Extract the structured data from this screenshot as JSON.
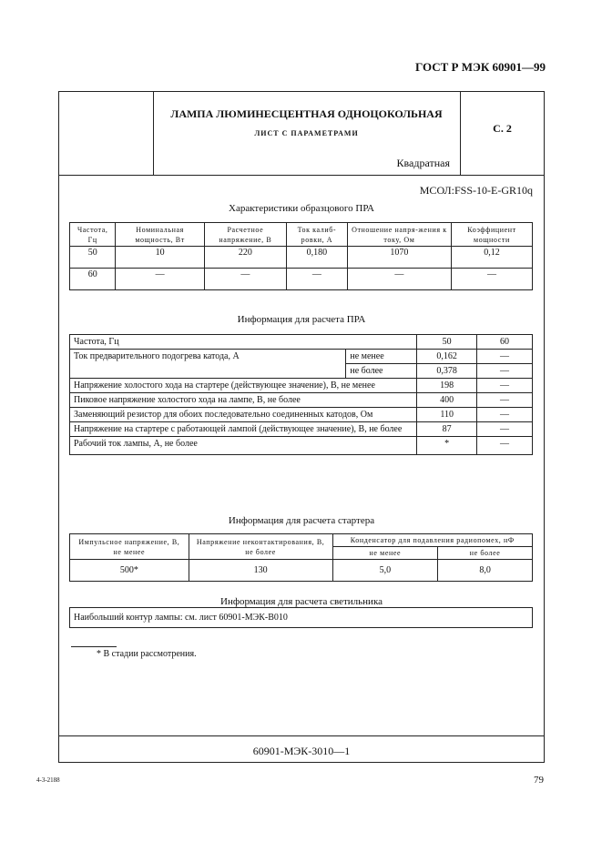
{
  "header": {
    "standard": "ГОСТ Р МЭК 60901—99",
    "title": "ЛАМПА ЛЮМИНЕСЦЕНТНАЯ ОДНОЦОКОЛЬНАЯ",
    "subtitle": "ЛИСТ С ПАРАМЕТРАМИ",
    "page_ref": "С. 2",
    "shape": "Квадратная",
    "designation": "МСОЛ:FSS-10-E-GR10q"
  },
  "ballast": {
    "caption": "Характеристики образцового ПРА",
    "headers": [
      "Частота, Гц",
      "Номинальная мощность, Вт",
      "Расчетное напряжение, В",
      "Ток калиб-ровки, А",
      "Отношение напря-жения к току, Ом",
      "Коэффициент мощности"
    ],
    "rows": [
      [
        "50",
        "10",
        "220",
        "0,180",
        "1070",
        "0,12"
      ],
      [
        "60",
        "—",
        "—",
        "—",
        "—",
        "—"
      ]
    ]
  },
  "calc": {
    "caption": "Информация для расчета ПРА",
    "freq_label": "Частота, Гц",
    "f50": "50",
    "f60": "60",
    "preheat_label": "Ток предварительного подогрева катода, А",
    "min_label": "не менее",
    "max_label": "не более",
    "preheat_min": [
      "0,162",
      "—"
    ],
    "preheat_max": [
      "0,378",
      "—"
    ],
    "rows": [
      {
        "label": "Напряжение холостого хода на стартере (действующее значение), В, не менее",
        "v50": "198",
        "v60": "—"
      },
      {
        "label": "Пиковое напряжение холостого хода на лампе, В, не более",
        "v50": "400",
        "v60": "—"
      },
      {
        "label": "Заменяющий резистор для обоих последовательно соединенных катодов, Ом",
        "v50": "110",
        "v60": "—"
      },
      {
        "label": "Напряжение на стартере с работающей лампой (действующее значение), В, не более",
        "v50": "87",
        "v60": "—"
      },
      {
        "label": "Рабочий ток лампы, А, не более",
        "v50": "*",
        "v60": "—"
      }
    ]
  },
  "starter": {
    "caption": "Информация для расчета стартера",
    "h1": "Импульсное напряжение, В, не менее",
    "h2": "Напряжение неконтактирования, В, не более",
    "h3": "Конденсатор для подавления радиопомех, нФ",
    "h3a": "не менее",
    "h3b": "не более",
    "values": [
      "500*",
      "130",
      "5,0",
      "8,0"
    ]
  },
  "luminaire": {
    "caption": "Информация для расчета светильника",
    "text": "Наибольший контур лампы: см. лист 60901-МЭК-В010"
  },
  "footnote": "* В стадии рассмотрения.",
  "footer": {
    "sheet": "60901-МЭК-3010—1",
    "print_code": "4-3-2188",
    "page_number": "79"
  }
}
